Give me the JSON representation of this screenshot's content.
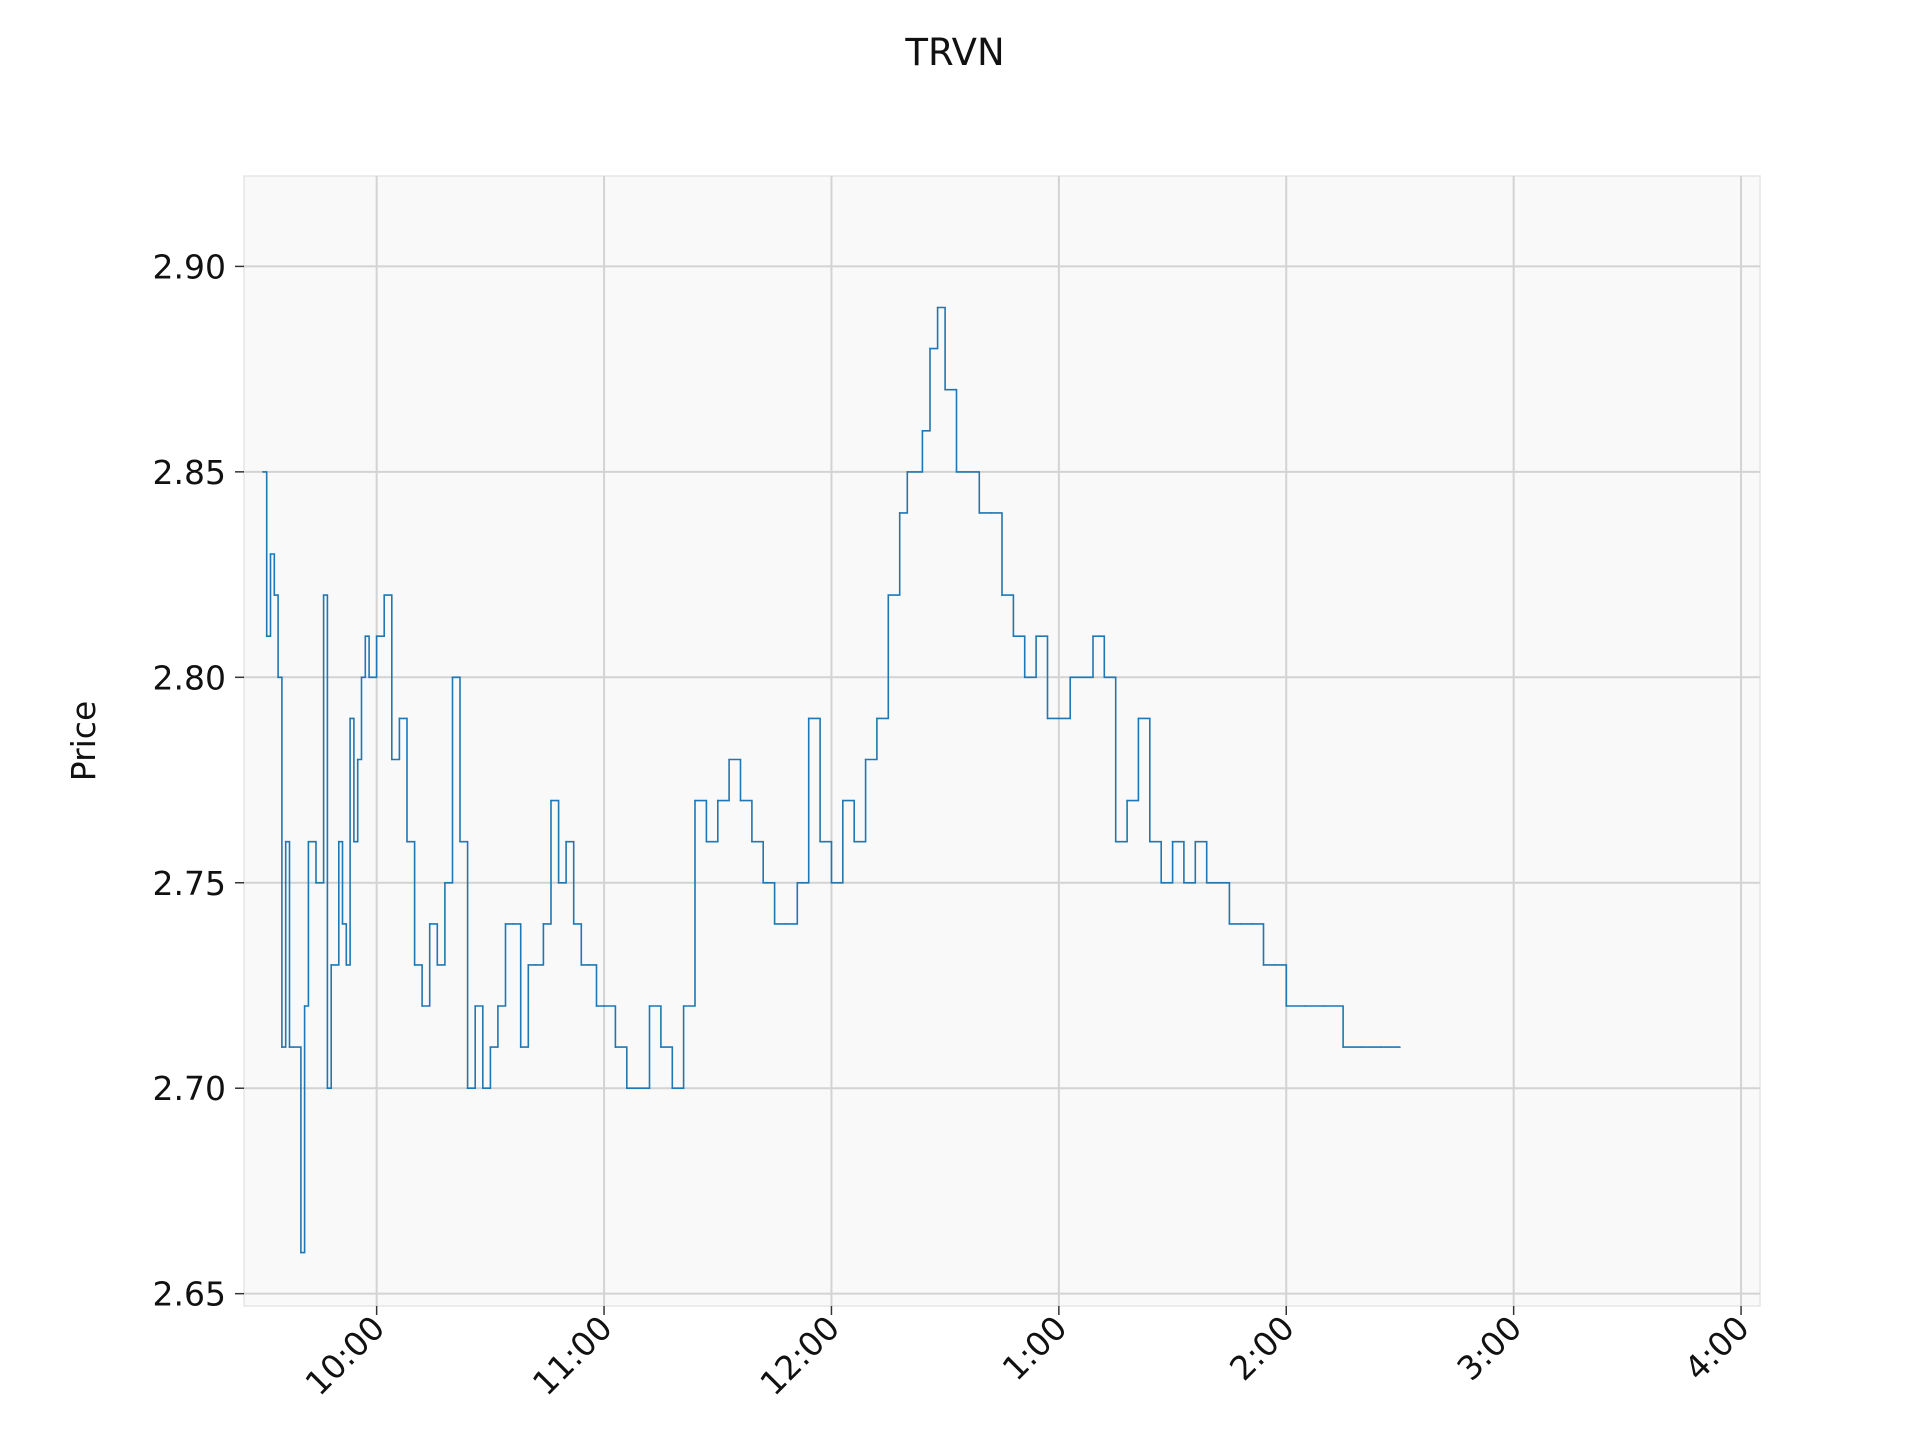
{
  "chart_data": {
    "type": "line",
    "title": "TRVN",
    "xlabel": "",
    "ylabel": "Price",
    "x_ticks": [
      "10:00",
      "11:00",
      "12:00",
      "1:00",
      "2:00",
      "3:00",
      "4:00"
    ],
    "y_ticks": [
      "2.65",
      "2.70",
      "2.75",
      "2.80",
      "2.85",
      "2.90"
    ],
    "x_range": [
      "9:25",
      "16:05"
    ],
    "ylim": [
      2.647,
      2.922
    ],
    "grid": true,
    "colors": {
      "line": "#1f77b4",
      "plot_bg": "#f9f9f9",
      "grid": "#d3d3d3",
      "spine": "#e6e6e6"
    },
    "series": [
      {
        "x": [
          "9:30",
          "9:31",
          "9:32",
          "9:33",
          "9:34",
          "9:35",
          "9:36",
          "9:37",
          "9:38",
          "9:40",
          "9:41",
          "9:42",
          "9:44",
          "9:46",
          "9:47",
          "9:48",
          "9:50",
          "9:51",
          "9:52",
          "9:53",
          "9:54",
          "9:55",
          "9:56",
          "9:57",
          "9:58",
          "9:59",
          "10:00",
          "10:02",
          "10:04",
          "10:06",
          "10:08",
          "10:10",
          "10:12",
          "10:14",
          "10:16",
          "10:18",
          "10:20",
          "10:22",
          "10:24",
          "10:26",
          "10:28",
          "10:30",
          "10:32",
          "10:34",
          "10:36",
          "10:38",
          "10:40",
          "10:42",
          "10:44",
          "10:46",
          "10:48",
          "10:50",
          "10:52",
          "10:54",
          "10:56",
          "10:58",
          "11:00",
          "11:03",
          "11:06",
          "11:09",
          "11:12",
          "11:15",
          "11:18",
          "11:21",
          "11:24",
          "11:27",
          "11:30",
          "11:33",
          "11:36",
          "11:39",
          "11:42",
          "11:45",
          "11:48",
          "11:51",
          "11:54",
          "11:57",
          "12:00",
          "12:03",
          "12:06",
          "12:09",
          "12:12",
          "12:15",
          "12:18",
          "12:20",
          "12:22",
          "12:24",
          "12:26",
          "12:28",
          "12:30",
          "12:33",
          "12:36",
          "12:39",
          "12:42",
          "12:45",
          "12:48",
          "12:51",
          "12:54",
          "12:57",
          "13:00",
          "13:03",
          "13:06",
          "13:09",
          "13:12",
          "13:15",
          "13:18",
          "13:21",
          "13:24",
          "13:27",
          "13:30",
          "13:33",
          "13:36",
          "13:39",
          "13:42",
          "13:45",
          "13:48",
          "13:51",
          "13:54",
          "13:57",
          "14:00",
          "14:05",
          "14:10",
          "14:15",
          "14:20",
          "14:25",
          "14:30"
        ],
        "y": [
          2.85,
          2.81,
          2.83,
          2.82,
          2.8,
          2.71,
          2.76,
          2.71,
          2.71,
          2.66,
          2.72,
          2.76,
          2.75,
          2.82,
          2.7,
          2.73,
          2.76,
          2.74,
          2.73,
          2.79,
          2.76,
          2.78,
          2.8,
          2.81,
          2.8,
          2.8,
          2.81,
          2.82,
          2.78,
          2.79,
          2.76,
          2.73,
          2.72,
          2.74,
          2.73,
          2.75,
          2.8,
          2.76,
          2.7,
          2.72,
          2.7,
          2.71,
          2.72,
          2.74,
          2.74,
          2.71,
          2.73,
          2.73,
          2.74,
          2.77,
          2.75,
          2.76,
          2.74,
          2.73,
          2.73,
          2.72,
          2.72,
          2.71,
          2.7,
          2.7,
          2.72,
          2.71,
          2.7,
          2.72,
          2.77,
          2.76,
          2.77,
          2.78,
          2.77,
          2.76,
          2.75,
          2.74,
          2.74,
          2.75,
          2.79,
          2.76,
          2.75,
          2.77,
          2.76,
          2.78,
          2.79,
          2.82,
          2.84,
          2.85,
          2.85,
          2.86,
          2.88,
          2.89,
          2.87,
          2.85,
          2.85,
          2.84,
          2.84,
          2.82,
          2.81,
          2.8,
          2.81,
          2.79,
          2.79,
          2.8,
          2.8,
          2.81,
          2.8,
          2.76,
          2.77,
          2.79,
          2.76,
          2.75,
          2.76,
          2.75,
          2.76,
          2.75,
          2.75,
          2.74,
          2.74,
          2.74,
          2.73,
          2.73,
          2.72,
          2.72,
          2.72,
          2.71,
          2.71,
          2.71,
          2.71
        ]
      }
    ]
  }
}
